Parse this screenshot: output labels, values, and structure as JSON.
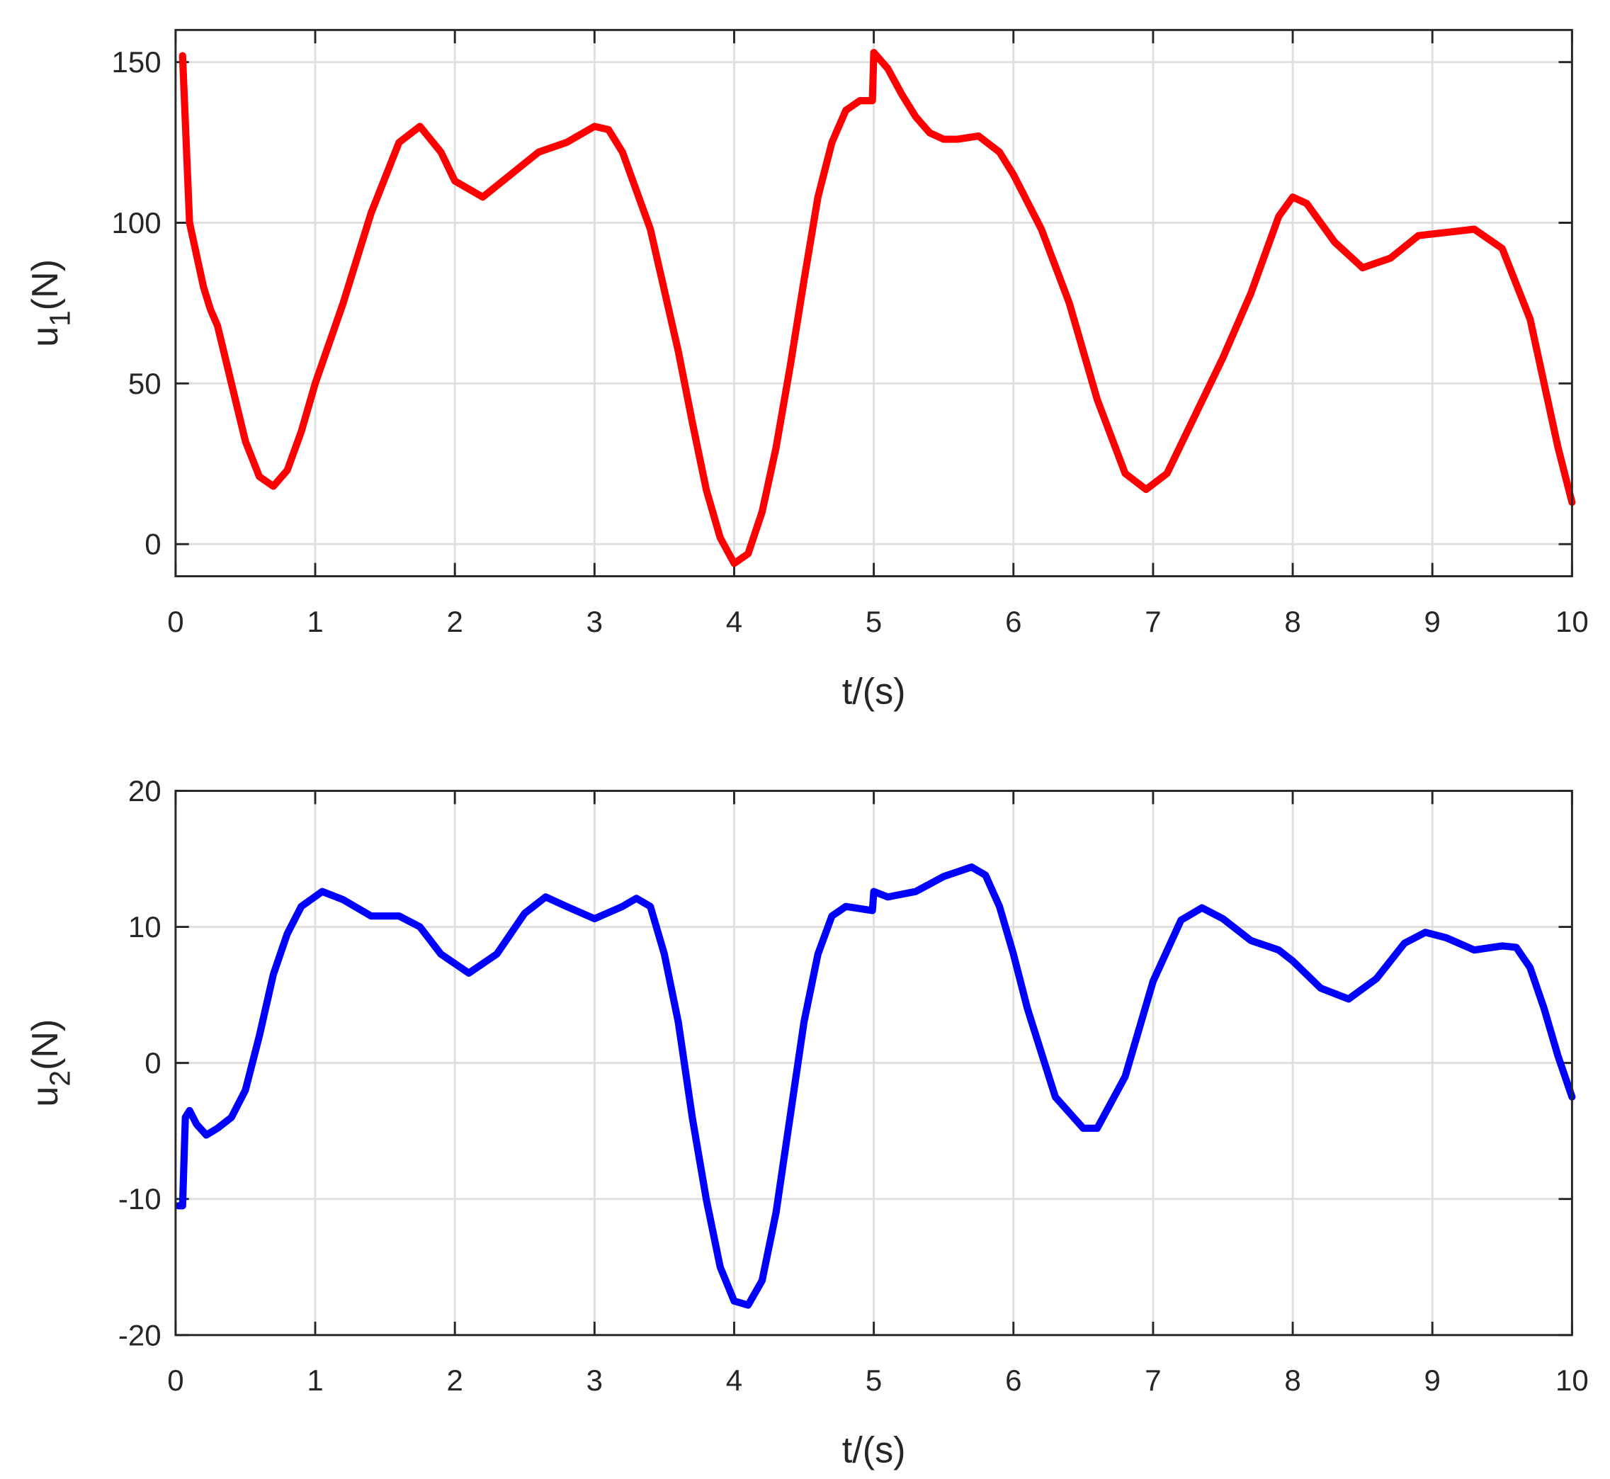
{
  "chart_data": [
    {
      "type": "line",
      "xlabel": "t/(s)",
      "ylabel": [
        "u",
        "1",
        "(N)"
      ],
      "xlim": [
        0,
        10
      ],
      "xticks": [
        0,
        1,
        2,
        3,
        4,
        5,
        6,
        7,
        8,
        9,
        10
      ],
      "ylim": [
        -10,
        160
      ],
      "yticks": [
        0,
        50,
        100,
        150
      ],
      "grid": true,
      "x": [
        0.05,
        0.1,
        0.2,
        0.25,
        0.3,
        0.4,
        0.5,
        0.6,
        0.7,
        0.8,
        0.9,
        1.0,
        1.2,
        1.4,
        1.6,
        1.75,
        1.9,
        2.0,
        2.2,
        2.4,
        2.6,
        2.8,
        3.0,
        3.1,
        3.2,
        3.4,
        3.6,
        3.7,
        3.8,
        3.9,
        4.0,
        4.1,
        4.2,
        4.3,
        4.4,
        4.5,
        4.6,
        4.7,
        4.8,
        4.9,
        4.99,
        5.0,
        5.1,
        5.2,
        5.3,
        5.4,
        5.5,
        5.6,
        5.75,
        5.9,
        6.0,
        6.2,
        6.4,
        6.6,
        6.8,
        6.95,
        7.1,
        7.3,
        7.5,
        7.7,
        7.9,
        8.0,
        8.1,
        8.3,
        8.5,
        8.7,
        8.9,
        9.1,
        9.3,
        9.5,
        9.7,
        9.9,
        10.0
      ],
      "series": [
        {
          "color": "#ff0000",
          "values": [
            152,
            100,
            80,
            73,
            68,
            50,
            32,
            21,
            18,
            23,
            35,
            50,
            75,
            103,
            125,
            130,
            122,
            113,
            108,
            115,
            122,
            125,
            130,
            129,
            122,
            98,
            60,
            38,
            17,
            2,
            -6,
            -3,
            10,
            30,
            55,
            82,
            108,
            125,
            135,
            138,
            138,
            153,
            148,
            140,
            133,
            128,
            126,
            126,
            127,
            122,
            115,
            98,
            75,
            45,
            22,
            17,
            22,
            40,
            58,
            78,
            102,
            108,
            106,
            94,
            86,
            89,
            96,
            97,
            98,
            92,
            70,
            30,
            13
          ]
        }
      ]
    },
    {
      "type": "line",
      "xlabel": "t/(s)",
      "ylabel": [
        "u",
        "2",
        "(N)"
      ],
      "xlim": [
        0,
        10
      ],
      "xticks": [
        0,
        1,
        2,
        3,
        4,
        5,
        6,
        7,
        8,
        9,
        10
      ],
      "ylim": [
        -20,
        20
      ],
      "yticks": [
        -20,
        -10,
        0,
        10,
        20
      ],
      "grid": true,
      "x": [
        0.02,
        0.05,
        0.07,
        0.1,
        0.15,
        0.22,
        0.3,
        0.4,
        0.5,
        0.6,
        0.7,
        0.8,
        0.9,
        1.05,
        1.2,
        1.4,
        1.6,
        1.75,
        1.9,
        2.1,
        2.3,
        2.5,
        2.65,
        2.8,
        3.0,
        3.2,
        3.3,
        3.4,
        3.5,
        3.6,
        3.7,
        3.8,
        3.9,
        4.0,
        4.1,
        4.2,
        4.3,
        4.4,
        4.5,
        4.6,
        4.7,
        4.8,
        4.99,
        5.0,
        5.1,
        5.3,
        5.5,
        5.7,
        5.8,
        5.9,
        6.0,
        6.1,
        6.3,
        6.5,
        6.6,
        6.8,
        7.0,
        7.2,
        7.35,
        7.5,
        7.7,
        7.9,
        8.0,
        8.2,
        8.4,
        8.6,
        8.8,
        8.95,
        9.1,
        9.3,
        9.5,
        9.6,
        9.7,
        9.8,
        9.9,
        10.0
      ],
      "series": [
        {
          "color": "#0000ff",
          "values": [
            -10.5,
            -10.5,
            -4,
            -3.5,
            -4.5,
            -5.3,
            -4.8,
            -4,
            -2,
            2,
            6.5,
            9.5,
            11.5,
            12.6,
            12,
            10.8,
            10.8,
            10,
            8,
            6.6,
            8,
            11,
            12.2,
            11.5,
            10.6,
            11.5,
            12.1,
            11.5,
            8,
            3,
            -4,
            -10,
            -15,
            -17.5,
            -17.8,
            -16,
            -11,
            -4,
            3,
            8,
            10.8,
            11.5,
            11.2,
            12.6,
            12.2,
            12.6,
            13.7,
            14.4,
            13.8,
            11.5,
            8,
            4,
            -2.5,
            -4.8,
            -4.8,
            -1,
            6,
            10.5,
            11.4,
            10.6,
            9,
            8.3,
            7.5,
            5.5,
            4.7,
            6.2,
            8.8,
            9.6,
            9.2,
            8.3,
            8.6,
            8.5,
            7,
            4,
            0.5,
            -2.5
          ]
        }
      ]
    }
  ]
}
